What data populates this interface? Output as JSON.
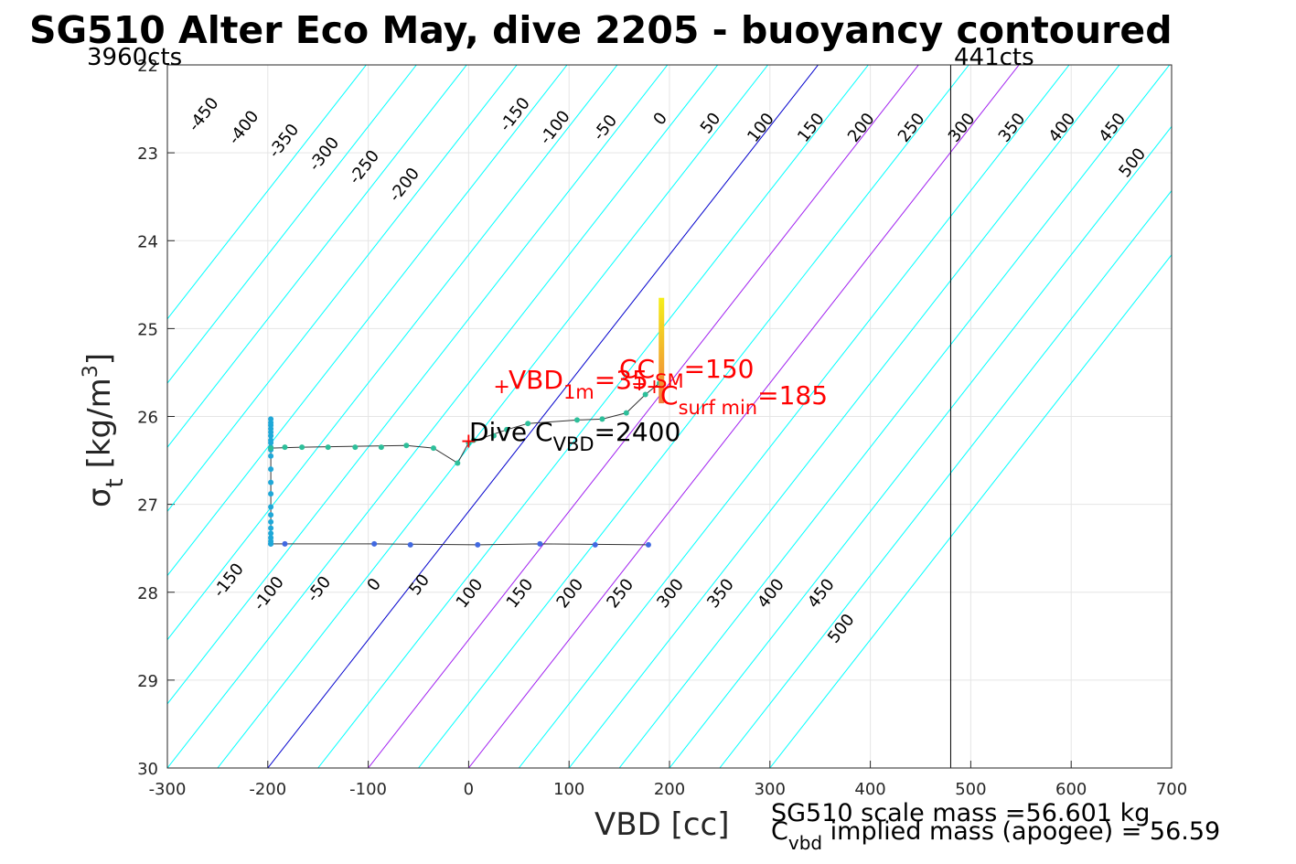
{
  "chart_data": {
    "type": "scatter",
    "title": "SG510 Alter Eco May, dive 2205 - buoyancy contoured",
    "xlabel": "VBD [cc]",
    "ylabel_symbol": "σ",
    "ylabel_sub": "t",
    "ylabel_unit": "[kg/m",
    "ylabel_sup": "3",
    "ylabel_close": "]",
    "xlim": [
      -300,
      700
    ],
    "ylim": [
      22,
      30
    ],
    "y_reversed": true,
    "grid": true,
    "xticks": [
      "-300",
      "-200",
      "-100",
      "0",
      "100",
      "200",
      "300",
      "400",
      "500",
      "600",
      "700"
    ],
    "yticks": [
      "22",
      "23",
      "24",
      "25",
      "26",
      "27",
      "28",
      "29",
      "30"
    ],
    "left_counts": "3960cts",
    "right_counts": "441cts",
    "counts_line_vbd": 480,
    "contour_color": "#00ffff",
    "zero_contour_color": "#0000cd",
    "highlight_contour_color": "#a020f0",
    "contour_values": [
      -450,
      -400,
      -350,
      -300,
      -250,
      -200,
      -150,
      -100,
      -50,
      0,
      50,
      100,
      150,
      200,
      250,
      300,
      350,
      400,
      450,
      500
    ],
    "highlight_contours": [
      100,
      200
    ],
    "top_labels": [
      {
        "text": "-450",
        "vbd": -260,
        "sigma": 22.6
      },
      {
        "text": "-400",
        "vbd": -220,
        "sigma": 22.75
      },
      {
        "text": "-350",
        "vbd": -180,
        "sigma": 22.9
      },
      {
        "text": "-300",
        "vbd": -140,
        "sigma": 23.05
      },
      {
        "text": "-250",
        "vbd": -100,
        "sigma": 23.2
      },
      {
        "text": "-200",
        "vbd": -60,
        "sigma": 23.4
      },
      {
        "text": "-150",
        "vbd": 50,
        "sigma": 22.6
      },
      {
        "text": "-100",
        "vbd": 90,
        "sigma": 22.75
      },
      {
        "text": "-50",
        "vbd": 140,
        "sigma": 22.75
      },
      {
        "text": "0",
        "vbd": 195,
        "sigma": 22.65
      },
      {
        "text": "50",
        "vbd": 245,
        "sigma": 22.7
      },
      {
        "text": "100",
        "vbd": 295,
        "sigma": 22.75
      },
      {
        "text": "150",
        "vbd": 345,
        "sigma": 22.75
      },
      {
        "text": "200",
        "vbd": 395,
        "sigma": 22.75
      },
      {
        "text": "250",
        "vbd": 445,
        "sigma": 22.75
      },
      {
        "text": "300",
        "vbd": 495,
        "sigma": 22.75
      },
      {
        "text": "350",
        "vbd": 545,
        "sigma": 22.75
      },
      {
        "text": "400",
        "vbd": 595,
        "sigma": 22.75
      },
      {
        "text": "450",
        "vbd": 645,
        "sigma": 22.75
      },
      {
        "text": "500",
        "vbd": 665,
        "sigma": 23.15
      }
    ],
    "bottom_labels": [
      {
        "text": "-150",
        "vbd": -235,
        "sigma": 27.9
      },
      {
        "text": "-100",
        "vbd": -195,
        "sigma": 28.05
      },
      {
        "text": "-50",
        "vbd": -145,
        "sigma": 28.0
      },
      {
        "text": "0",
        "vbd": -90,
        "sigma": 27.95
      },
      {
        "text": "50",
        "vbd": -45,
        "sigma": 27.95
      },
      {
        "text": "100",
        "vbd": 5,
        "sigma": 28.05
      },
      {
        "text": "150",
        "vbd": 55,
        "sigma": 28.05
      },
      {
        "text": "200",
        "vbd": 105,
        "sigma": 28.05
      },
      {
        "text": "250",
        "vbd": 155,
        "sigma": 28.05
      },
      {
        "text": "300",
        "vbd": 205,
        "sigma": 28.05
      },
      {
        "text": "350",
        "vbd": 255,
        "sigma": 28.05
      },
      {
        "text": "400",
        "vbd": 305,
        "sigma": 28.05
      },
      {
        "text": "450",
        "vbd": 355,
        "sigma": 28.05
      },
      {
        "text": "500",
        "vbd": 375,
        "sigma": 28.45
      }
    ],
    "series": [
      {
        "color": "#4169e1",
        "points": [
          [
            179,
            27.46
          ],
          [
            126,
            27.46
          ],
          [
            71,
            27.45
          ],
          [
            9,
            27.46
          ],
          [
            -58,
            27.46
          ],
          [
            -94,
            27.45
          ],
          [
            -183,
            27.45
          ],
          [
            -197,
            27.45
          ]
        ]
      },
      {
        "color": "#1fa8d8",
        "points": [
          [
            -197,
            27.45
          ],
          [
            -197,
            27.42
          ],
          [
            -197,
            27.38
          ],
          [
            -197,
            27.33
          ],
          [
            -197,
            27.27
          ],
          [
            -197,
            27.2
          ],
          [
            -197,
            27.12
          ],
          [
            -197,
            27.03
          ],
          [
            -197,
            26.88
          ],
          [
            -197,
            26.75
          ],
          [
            -197,
            26.6
          ],
          [
            -197,
            26.45
          ],
          [
            -197,
            26.38
          ],
          [
            -197,
            26.35
          ],
          [
            -197,
            26.3
          ],
          [
            -197,
            26.27
          ],
          [
            -197,
            26.22
          ],
          [
            -197,
            26.18
          ],
          [
            -197,
            26.14
          ],
          [
            -197,
            26.1
          ],
          [
            -197,
            26.07
          ],
          [
            -197,
            26.03
          ]
        ]
      },
      {
        "color": "#2dbf9a",
        "points": [
          [
            -197,
            26.36
          ],
          [
            -183,
            26.35
          ],
          [
            -166,
            26.35
          ],
          [
            -140,
            26.35
          ],
          [
            -113,
            26.35
          ],
          [
            -87,
            26.35
          ],
          [
            -62,
            26.33
          ],
          [
            -35,
            26.36
          ],
          [
            -11,
            26.53
          ],
          [
            0,
            26.3
          ],
          [
            5,
            26.27
          ],
          [
            25,
            26.22
          ],
          [
            38,
            26.15
          ],
          [
            59,
            26.08
          ],
          [
            108,
            26.04
          ],
          [
            133,
            26.03
          ],
          [
            157,
            25.96
          ],
          [
            176,
            25.75
          ],
          [
            190,
            25.62
          ]
        ]
      }
    ],
    "trace": [
      [
        179,
        27.46
      ],
      [
        71,
        27.45
      ],
      [
        9,
        27.46
      ],
      [
        -94,
        27.45
      ],
      [
        -197,
        27.45
      ],
      [
        -197,
        26.03
      ],
      [
        -197,
        26.36
      ],
      [
        -166,
        26.35
      ],
      [
        -62,
        26.33
      ],
      [
        -35,
        26.36
      ],
      [
        -11,
        26.53
      ],
      [
        0,
        26.3
      ],
      [
        38,
        26.15
      ],
      [
        59,
        26.08
      ],
      [
        108,
        26.04
      ],
      [
        133,
        26.03
      ],
      [
        157,
        25.96
      ],
      [
        176,
        25.75
      ],
      [
        190,
        25.62
      ]
    ],
    "surface_bar": {
      "vbd": 192,
      "sigma_top": 24.65,
      "sigma_bottom": 25.85,
      "color_top": "#f5ef1a",
      "color_bottom": "#f07d3c"
    },
    "markers": [
      {
        "text": "+",
        "vbd": 0,
        "sigma": 26.27
      },
      {
        "text": "+",
        "vbd": 33,
        "sigma": 25.65
      },
      {
        "text": "+",
        "vbd": 170,
        "sigma": 25.62
      },
      {
        "text": "+",
        "vbd": 185,
        "sigma": 25.65
      }
    ],
    "annotations": {
      "vbd1m_main": "VBD",
      "vbd1m_sub": "1m",
      "vbd1m_val": "=35",
      "ccsm_main": "CC",
      "ccsm_sub": "SM",
      "ccsm_val": "=150",
      "csurf_main": "C",
      "csurf_sub": "surf min",
      "csurf_val": "=185",
      "dive_main": "Dive C",
      "dive_sub": "VBD",
      "dive_val": "=2400"
    }
  },
  "footer": {
    "line1": "SG510 scale mass =56.601 kg",
    "line2_main": "C",
    "line2_sub": "vbd",
    "line2_rest": " implied mass (apogee) = 56.59"
  }
}
